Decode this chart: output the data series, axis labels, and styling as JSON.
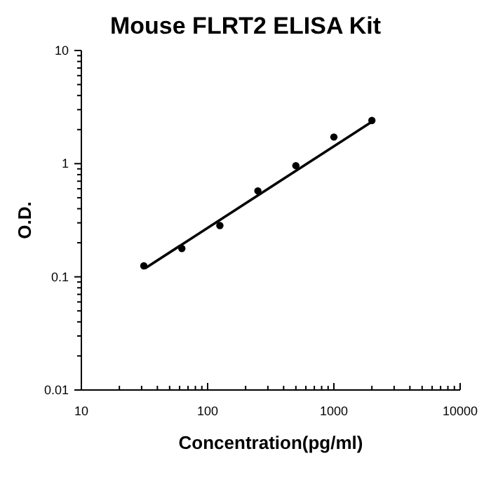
{
  "chart_data": {
    "type": "scatter",
    "title": "Mouse FLRT2 ELISA Kit",
    "xlabel": "Concentration(pg/ml)",
    "ylabel": "O.D.",
    "log": "xy",
    "grid": false,
    "marker": "circle",
    "series": [
      {
        "color": "#000000",
        "x": [
          31.25,
          62.5,
          125,
          250,
          500,
          1000,
          2000
        ],
        "values": [
          0.125,
          0.178,
          0.284,
          0.575,
          0.96,
          1.72,
          2.41
        ]
      },
      {
        "type": "line",
        "color": "#000000",
        "marker": "none",
        "line_style": "solid",
        "x": [
          32,
          2000
        ],
        "values": [
          0.119,
          2.35
        ]
      }
    ],
    "xlim": [
      10,
      10000
    ],
    "ylim": [
      0.01,
      10
    ],
    "xticks": [
      10,
      {
        "value": 20,
        "label": null
      },
      {
        "value": 30,
        "label": null
      },
      {
        "value": 40,
        "label": null
      },
      {
        "value": 50,
        "label": null
      },
      {
        "value": 60,
        "label": null
      },
      {
        "value": 70,
        "label": null
      },
      {
        "value": 80,
        "label": null
      },
      {
        "value": 90,
        "label": null
      },
      100,
      {
        "value": 200,
        "label": null
      },
      {
        "value": 300,
        "label": null
      },
      {
        "value": 400,
        "label": null
      },
      {
        "value": 500,
        "label": null
      },
      {
        "value": 600,
        "label": null
      },
      {
        "value": 700,
        "label": null
      },
      {
        "value": 800,
        "label": null
      },
      {
        "value": 900,
        "label": null
      },
      1000,
      {
        "value": 2000,
        "label": null
      },
      {
        "value": 3000,
        "label": null
      },
      {
        "value": 4000,
        "label": null
      },
      {
        "value": 5000,
        "label": null
      },
      {
        "value": 6000,
        "label": null
      },
      {
        "value": 7000,
        "label": null
      },
      {
        "value": 8000,
        "label": null
      },
      {
        "value": 9000,
        "label": null
      },
      10000
    ],
    "yticks": [
      0.01,
      {
        "value": 0.02,
        "label": null
      },
      {
        "value": 0.03,
        "label": null
      },
      {
        "value": 0.04,
        "label": null
      },
      {
        "value": 0.05,
        "label": null
      },
      {
        "value": 0.06,
        "label": null
      },
      {
        "value": 0.07,
        "label": null
      },
      {
        "value": 0.08,
        "label": null
      },
      {
        "value": 0.09,
        "label": null
      },
      0.1,
      {
        "value": 0.2,
        "label": null
      },
      {
        "value": 0.3,
        "label": null
      },
      {
        "value": 0.4,
        "label": null
      },
      {
        "value": 0.5,
        "label": null
      },
      {
        "value": 0.6,
        "label": null
      },
      {
        "value": 0.7,
        "label": null
      },
      {
        "value": 0.8,
        "label": null
      },
      {
        "value": 0.9,
        "label": null
      },
      1,
      {
        "value": 2,
        "label": null
      },
      {
        "value": 3,
        "label": null
      },
      {
        "value": 4,
        "label": null
      },
      {
        "value": 5,
        "label": null
      },
      {
        "value": 6,
        "label": null
      },
      {
        "value": 7,
        "label": null
      },
      {
        "value": 8,
        "label": null
      },
      {
        "value": 9,
        "label": null
      },
      10
    ]
  }
}
